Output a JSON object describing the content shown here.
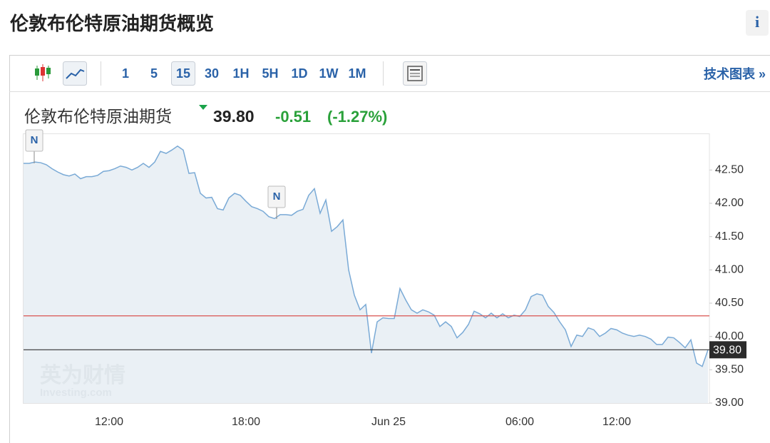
{
  "header": {
    "title": "伦敦布伦特原油期货概览",
    "info": "i"
  },
  "toolbar": {
    "intervals": [
      "1",
      "5",
      "15",
      "30",
      "1H",
      "5H",
      "1D",
      "1W",
      "1M"
    ],
    "link": "技术图表 »"
  },
  "instrument": {
    "name": "伦敦布伦特原油期货",
    "price": "39.80",
    "change": "-0.51",
    "change_percent": "(-1.27%)"
  },
  "watermark": {
    "brand": "英为财情",
    "site": "Investing.com"
  },
  "chart_data": {
    "type": "line",
    "color": "#7aaad6",
    "fill": "#e6edf3",
    "categories": [
      null,
      null,
      null,
      null,
      null,
      null,
      null,
      null,
      null,
      null,
      null,
      null,
      null,
      null,
      null,
      "12:00",
      null,
      null,
      null,
      null,
      null,
      null,
      null,
      null,
      null,
      null,
      null,
      null,
      null,
      null,
      null,
      null,
      null,
      null,
      null,
      null,
      null,
      null,
      null,
      "18:00",
      null,
      null,
      null,
      null,
      null,
      null,
      null,
      null,
      null,
      null,
      null,
      null,
      null,
      null,
      null,
      null,
      null,
      null,
      null,
      null,
      null,
      null,
      null,
      null,
      "Jun 25",
      null,
      null,
      null,
      null,
      null,
      null,
      null,
      null,
      null,
      null,
      null,
      null,
      null,
      null,
      null,
      null,
      null,
      null,
      null,
      null,
      null,
      null,
      "06:00",
      null,
      null,
      null,
      null,
      null,
      null,
      null,
      null,
      null,
      null,
      null,
      null,
      null,
      null,
      null,
      null,
      "12:00",
      null,
      null,
      null,
      null,
      null,
      null,
      null,
      null,
      null,
      null,
      null,
      null,
      null,
      null,
      null,
      null
    ],
    "values": [
      42.6,
      42.6,
      42.62,
      42.61,
      42.58,
      42.52,
      42.47,
      42.43,
      42.41,
      42.44,
      42.37,
      42.4,
      42.4,
      42.42,
      42.48,
      42.49,
      42.52,
      42.56,
      42.54,
      42.5,
      42.54,
      42.6,
      42.54,
      42.62,
      42.78,
      42.75,
      42.8,
      42.86,
      42.8,
      42.45,
      42.46,
      42.15,
      42.08,
      42.09,
      41.92,
      41.9,
      42.08,
      42.15,
      42.12,
      42.03,
      41.95,
      41.92,
      41.88,
      41.8,
      41.77,
      41.83,
      41.83,
      41.82,
      41.88,
      41.91,
      42.12,
      42.22,
      41.85,
      42.05,
      41.58,
      41.65,
      41.75,
      41.0,
      40.62,
      40.4,
      40.48,
      39.75,
      40.22,
      40.28,
      40.27,
      40.27,
      40.72,
      40.55,
      40.4,
      40.35,
      40.4,
      40.37,
      40.32,
      40.15,
      40.22,
      40.15,
      39.98,
      40.06,
      40.18,
      40.38,
      40.34,
      40.28,
      40.35,
      40.28,
      40.34,
      40.28,
      40.32,
      40.3,
      40.4,
      40.6,
      40.64,
      40.62,
      40.45,
      40.36,
      40.22,
      40.1,
      39.85,
      40.02,
      40.0,
      40.13,
      40.1,
      40.0,
      40.05,
      40.12,
      40.1,
      40.05,
      40.02,
      40.0,
      40.02,
      40.0,
      39.96,
      39.88,
      39.88,
      39.99,
      39.98,
      39.91,
      39.83,
      39.95,
      39.6,
      39.55,
      39.8
    ],
    "ylim": [
      39.0,
      43.05
    ],
    "yticks": [
      {
        "value": 39.0,
        "label": "39.00"
      },
      {
        "value": 39.5,
        "label": "39.50"
      },
      {
        "value": 40.0,
        "label": "40.00"
      },
      {
        "value": 40.5,
        "label": "40.50"
      },
      {
        "value": 41.0,
        "label": "41.00"
      },
      {
        "value": 41.5,
        "label": "41.50"
      },
      {
        "value": 42.0,
        "label": "42.00"
      },
      {
        "value": 42.5,
        "label": "42.50"
      }
    ],
    "reference_lines": [
      {
        "value": 40.31,
        "color": "#d9534f"
      },
      {
        "value": 39.8,
        "label": "39.80",
        "color": "#333333"
      }
    ],
    "annotations": [
      {
        "text": "N"
      },
      {
        "text": "N"
      }
    ]
  }
}
